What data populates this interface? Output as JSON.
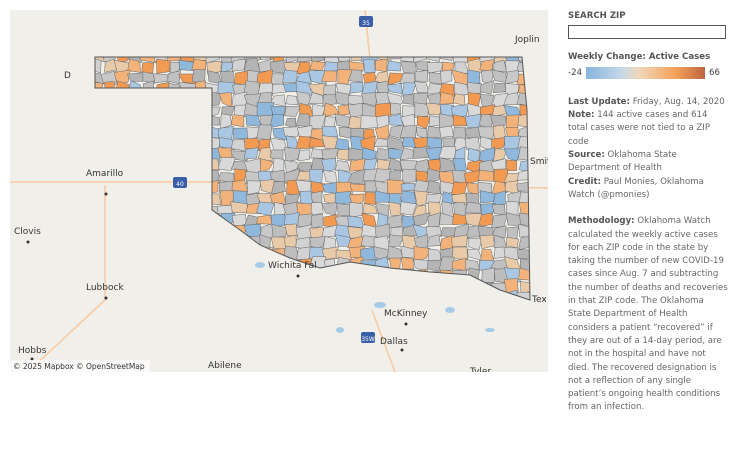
{
  "map": {
    "attribution": "© 2025 Mapbox © OpenStreetMap",
    "places": [
      "Joplin",
      "Amarillo",
      "Clovis",
      "Lubbock",
      "Hobbs",
      "Abilene",
      "Wichita Fal",
      "McKinney",
      "Dallas",
      "Tyler",
      "Smit",
      "Tex",
      "D"
    ],
    "shields": [
      "35",
      "40",
      "35W"
    ]
  },
  "search": {
    "label": "SEARCH ZIP"
  },
  "legend": {
    "title": "Weekly Change: Active Cases",
    "min": -24,
    "max": 66
  },
  "notes": [
    {
      "label": "Last Update:",
      "text": "Friday, Aug. 14, 2020"
    },
    {
      "label": "Note:",
      "text": "144 active cases and 614 total cases were not tied to a ZIP code"
    },
    {
      "label": "Source:",
      "text": "Oklahoma State Department of Health"
    },
    {
      "label": "Credit:",
      "text": "Paul Monies, Oklahoma Watch (@pmonies)"
    }
  ],
  "methodology": {
    "label": "Methodology:",
    "text": "Oklahoma Watch calculated the weekly active cases for each ZIP code in the state by taking the number of new COVID-19 cases since Aug. 7 and subtracting the number of deaths and recoveries in that ZIP code. The Oklahoma State Department of Health considers a patient “recovered” if they are out of a 14-day period, are not in the hospital and have not died. The recovered designation is not a reflection of any single patient’s ongoing health conditions from an infection."
  }
}
